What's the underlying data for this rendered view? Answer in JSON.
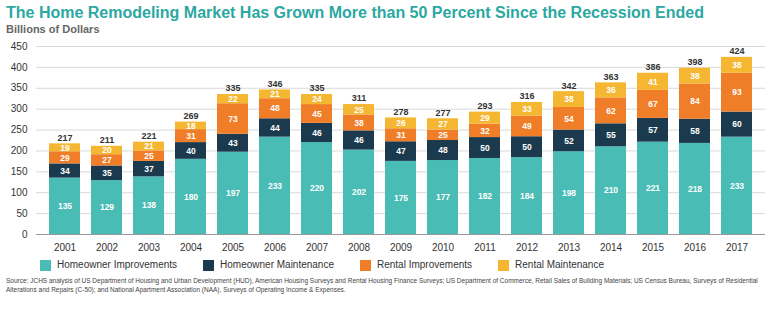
{
  "chart_data": {
    "type": "bar",
    "title": "The Home Remodeling Market Has Grown More than 50 Percent Since the Recession Ended",
    "subtitle": "Billions of Dollars",
    "source": "Source: JCHS analysis of US Department of Housing and Urban Development (HUD), American Housing Surveys and Rental Housing Finance Surveys; US Department of Commerce, Retail Sales of Building Materials; US Census Bureau, Surveys of Residential Alterations and Repairs (C-50); and National Apartment Association (NAA), Surveys of Operating Income & Expenses.",
    "categories": [
      "2001",
      "2002",
      "2003",
      "2004",
      "2005",
      "2006",
      "2007",
      "2008",
      "2009",
      "2010",
      "2011",
      "2012",
      "2013",
      "2014",
      "2015",
      "2016",
      "2017"
    ],
    "series": [
      {
        "name": "Homeowner Improvements",
        "color": "#48bcb5",
        "values": [
          135,
          129,
          138,
          180,
          197,
          233,
          220,
          202,
          175,
          177,
          182,
          184,
          198,
          210,
          221,
          218,
          233
        ]
      },
      {
        "name": "Homeowner Maintenance",
        "color": "#1c3a4e",
        "values": [
          34,
          35,
          37,
          40,
          43,
          44,
          46,
          46,
          47,
          48,
          50,
          50,
          52,
          55,
          57,
          58,
          60
        ]
      },
      {
        "name": "Rental Improvements",
        "color": "#f07d27",
        "values": [
          29,
          27,
          25,
          31,
          73,
          48,
          45,
          38,
          31,
          25,
          32,
          49,
          54,
          62,
          67,
          84,
          93
        ]
      },
      {
        "name": "Rental Maintenance",
        "color": "#f5b731",
        "values": [
          19,
          20,
          21,
          18,
          22,
          21,
          24,
          25,
          26,
          27,
          29,
          33,
          38,
          36,
          41,
          38,
          38
        ]
      }
    ],
    "totals": [
      217,
      211,
      221,
      269,
      335,
      346,
      335,
      311,
      278,
      277,
      293,
      316,
      342,
      363,
      386,
      398,
      424
    ],
    "ylim": [
      0,
      450
    ],
    "yticks": [
      0,
      50,
      100,
      150,
      200,
      250,
      300,
      350,
      400,
      450
    ],
    "stacked": true,
    "data_labels": true,
    "grid": true,
    "legend": "bottom"
  }
}
